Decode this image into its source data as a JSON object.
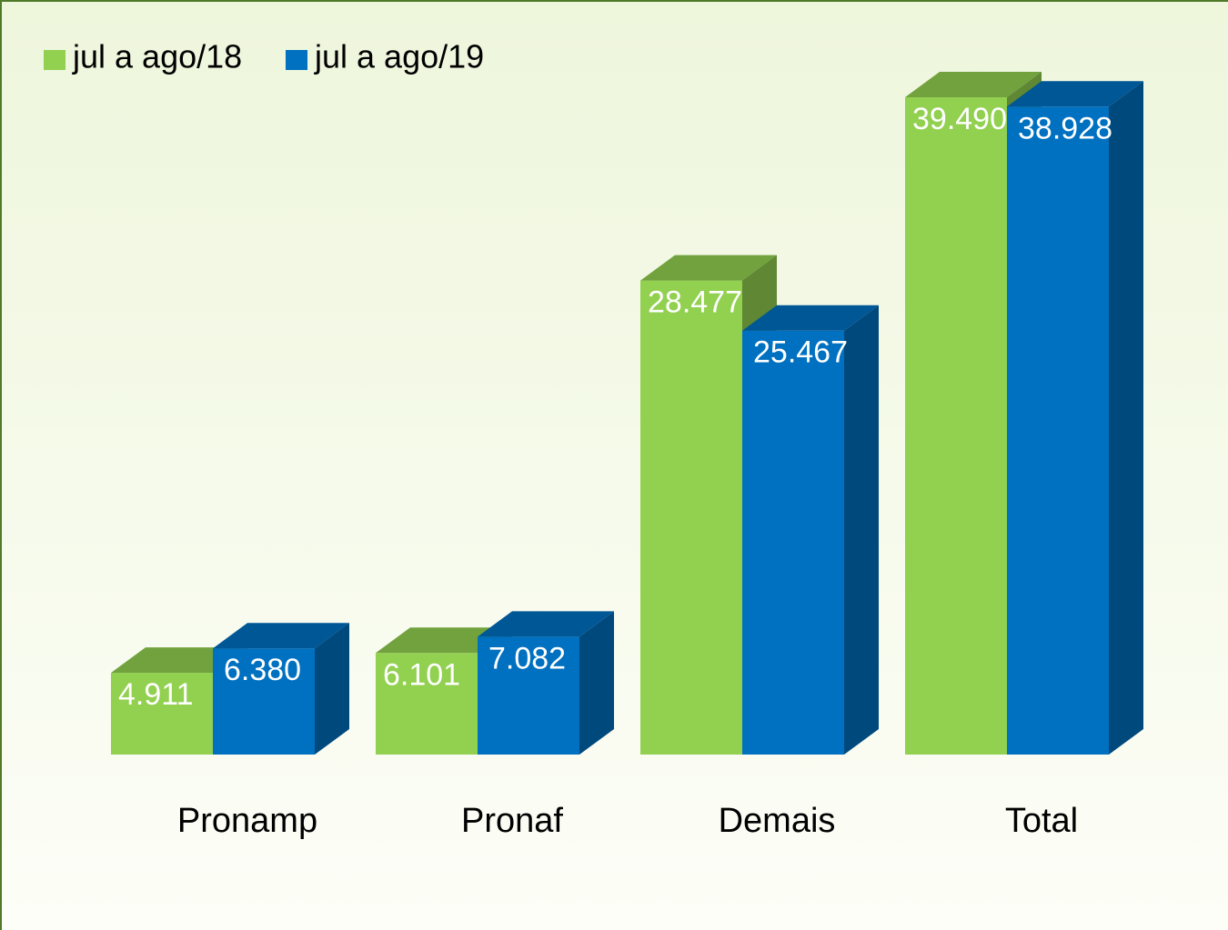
{
  "chart_data": {
    "type": "bar3d",
    "categories": [
      "Pronamp",
      "Pronaf",
      "Demais",
      "Total"
    ],
    "series": [
      {
        "name": "jul a ago/18",
        "color": "#92d050",
        "values": [
          4911,
          6101,
          28477,
          39490
        ],
        "value_labels": [
          "4.911",
          "6.101",
          "28.477",
          "39.490"
        ]
      },
      {
        "name": "jul a ago/19",
        "color": "#0070c0",
        "values": [
          6380,
          7082,
          25467,
          38928
        ],
        "value_labels": [
          "6.380",
          "7.082",
          "25.467",
          "38.928"
        ]
      }
    ]
  }
}
